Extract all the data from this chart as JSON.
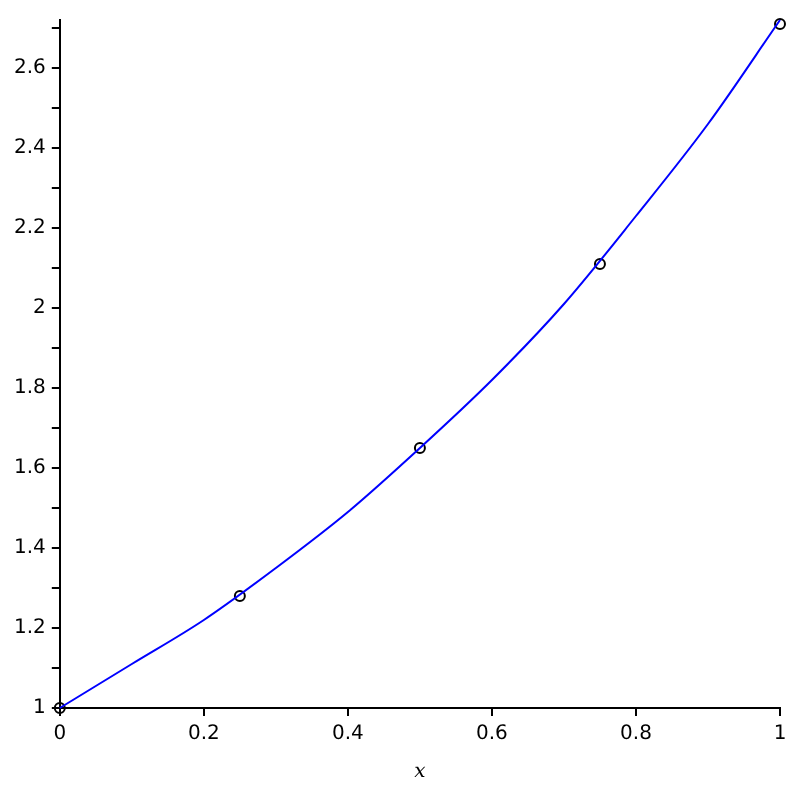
{
  "chart_data": {
    "type": "line",
    "xlabel": "x",
    "xlim": [
      0,
      1
    ],
    "xticks": [
      0,
      0.2,
      0.4,
      0.6,
      0.8,
      1
    ],
    "ylim": [
      1,
      2.72
    ],
    "yticks": [
      1,
      {
        "value": 1.1,
        "label": null
      },
      1.2,
      {
        "value": 1.3,
        "label": null
      },
      1.4,
      {
        "value": 1.5,
        "label": null
      },
      1.6,
      {
        "value": 1.7,
        "label": null
      },
      1.8,
      {
        "value": 1.9,
        "label": null
      },
      2,
      {
        "value": 2.1,
        "label": null
      },
      2.2,
      {
        "value": 2.3,
        "label": null
      },
      2.4,
      {
        "value": 2.5,
        "label": null
      },
      2.6,
      {
        "value": 2.7,
        "label": null
      }
    ],
    "grid": false,
    "legend": false,
    "series": [
      {
        "color": "#0000ff",
        "marker": "none",
        "x": [
          0,
          0.1,
          0.2,
          0.3,
          0.4,
          0.5,
          0.6,
          0.7,
          0.8,
          0.9,
          1
        ],
        "values": [
          1,
          1.11,
          1.22,
          1.35,
          1.49,
          1.65,
          1.82,
          2.01,
          2.23,
          2.46,
          2.72
        ]
      },
      {
        "type": "scatter",
        "color": "#000000",
        "marker": "circle",
        "x": [
          0,
          0.25,
          0.5,
          0.75,
          1
        ],
        "values": [
          1,
          1.28,
          1.65,
          2.11,
          2.71
        ]
      }
    ]
  }
}
